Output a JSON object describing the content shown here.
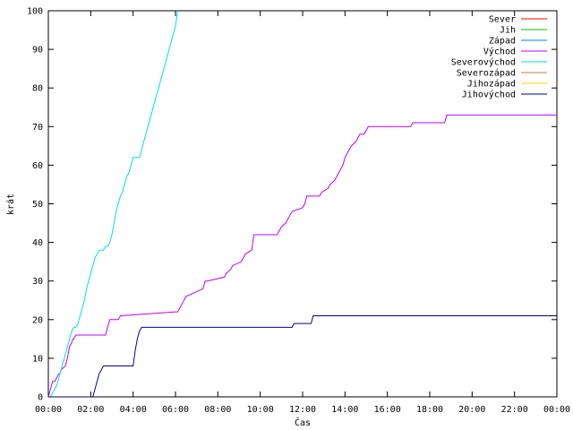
{
  "chart_data": {
    "type": "line",
    "xlabel": "Čas",
    "ylabel": "krát",
    "xlim": [
      0,
      24
    ],
    "ylim": [
      0,
      100
    ],
    "x_ticks": [
      {
        "value": 0,
        "label": "00:00"
      },
      {
        "value": 2,
        "label": "02:00"
      },
      {
        "value": 4,
        "label": "04:00"
      },
      {
        "value": 6,
        "label": "06:00"
      },
      {
        "value": 8,
        "label": "08:00"
      },
      {
        "value": 10,
        "label": "10:00"
      },
      {
        "value": 12,
        "label": "12:00"
      },
      {
        "value": 14,
        "label": "14:00"
      },
      {
        "value": 16,
        "label": "16:00"
      },
      {
        "value": 18,
        "label": "18:00"
      },
      {
        "value": 20,
        "label": "20:00"
      },
      {
        "value": 22,
        "label": "22:00"
      },
      {
        "value": 24,
        "label": "00:00"
      }
    ],
    "y_ticks": [
      {
        "value": 0,
        "label": "0"
      },
      {
        "value": 10,
        "label": "10"
      },
      {
        "value": 20,
        "label": "20"
      },
      {
        "value": 30,
        "label": "30"
      },
      {
        "value": 40,
        "label": "40"
      },
      {
        "value": 50,
        "label": "50"
      },
      {
        "value": 60,
        "label": "60"
      },
      {
        "value": 70,
        "label": "70"
      },
      {
        "value": 80,
        "label": "80"
      },
      {
        "value": 90,
        "label": "90"
      },
      {
        "value": 100,
        "label": "100"
      }
    ],
    "grid": false,
    "legend_position": "top-right",
    "series": [
      {
        "name": "Sever",
        "color": "#ff0000",
        "x": [],
        "y": []
      },
      {
        "name": "Jih",
        "color": "#00c000",
        "x": [],
        "y": []
      },
      {
        "name": "Západ",
        "color": "#0080ff",
        "x": [],
        "y": []
      },
      {
        "name": "Východ",
        "color": "#c000ff",
        "x": [
          0,
          0.1,
          0.15,
          0.2,
          0.3,
          0.4,
          0.5,
          0.55,
          0.6,
          0.8,
          0.85,
          0.9,
          1.0,
          1.1,
          1.15,
          1.2,
          1.3,
          1.4,
          1.5,
          2.7,
          2.8,
          2.9,
          3.3,
          3.4,
          6.0,
          6.1,
          6.2,
          6.3,
          6.4,
          6.5,
          7.3,
          7.4,
          7.5,
          8.3,
          8.4,
          8.6,
          8.7,
          9.1,
          9.2,
          9.3,
          9.6,
          9.7,
          10.8,
          10.9,
          11.0,
          11.2,
          11.3,
          11.4,
          11.5,
          12.0,
          12.1,
          12.2,
          12.8,
          12.9,
          13.2,
          13.3,
          13.5,
          13.6,
          13.7,
          13.8,
          13.9,
          14.0,
          14.1,
          14.2,
          14.3,
          14.5,
          14.6,
          14.7,
          14.9,
          15.0,
          15.1,
          17.1,
          17.2,
          18.7,
          18.8,
          24.0
        ],
        "y": [
          0,
          2,
          3,
          4,
          4,
          5,
          6,
          6,
          7,
          8,
          9,
          10,
          13,
          14,
          15,
          15,
          16,
          16,
          16,
          16,
          18,
          20,
          20,
          21,
          22,
          22,
          23,
          24,
          25,
          26,
          28,
          30,
          30,
          31,
          32,
          33,
          34,
          35,
          36,
          37,
          38,
          42,
          42,
          43,
          44,
          45,
          46,
          47,
          48,
          49,
          50,
          52,
          52,
          53,
          54,
          55,
          56,
          57,
          58,
          59,
          60,
          62,
          63,
          64,
          65,
          66,
          67,
          68,
          68,
          69,
          70,
          70,
          71,
          71,
          73,
          73
        ]
      },
      {
        "name": "Severovýchod",
        "color": "#00e0e0",
        "x": [
          0,
          0.1,
          0.2,
          0.3,
          0.4,
          0.5,
          0.6,
          0.7,
          0.8,
          0.9,
          1.0,
          1.1,
          1.2,
          1.3,
          1.4,
          1.5,
          1.6,
          1.7,
          1.8,
          1.9,
          2.0,
          2.1,
          2.2,
          2.3,
          2.4,
          2.5,
          2.6,
          2.7,
          2.8,
          2.9,
          3.0,
          3.1,
          3.2,
          3.3,
          3.4,
          3.5,
          3.6,
          3.7,
          3.8,
          3.9,
          4.0,
          4.1,
          4.2,
          4.3,
          4.4,
          4.5,
          4.6,
          4.7,
          4.8,
          4.9,
          5.0,
          5.1,
          5.2,
          5.3,
          5.4,
          5.5,
          5.6,
          5.7,
          5.8,
          5.9,
          6.0,
          6.1
        ],
        "y": [
          0,
          0,
          1,
          2,
          3,
          5,
          7,
          9,
          11,
          13,
          15,
          17,
          18,
          18,
          19,
          21,
          23,
          25,
          28,
          30,
          32,
          34,
          36,
          37,
          38,
          38,
          38,
          39,
          39,
          40,
          42,
          45,
          48,
          50,
          52,
          53,
          55,
          57,
          58,
          60,
          62,
          62,
          62,
          62,
          64,
          66,
          68,
          70,
          72,
          74,
          76,
          78,
          80,
          82,
          84,
          86,
          88,
          90,
          92,
          94,
          96,
          100
        ]
      },
      {
        "name": "Severozápad",
        "color": "#c08040",
        "x": [],
        "y": []
      },
      {
        "name": "Jihozápad",
        "color": "#ffd700",
        "x": [],
        "y": []
      },
      {
        "name": "Jihovýchod",
        "color": "#0000a0",
        "x": [
          0,
          2.1,
          2.2,
          2.3,
          2.4,
          2.5,
          2.6,
          2.7,
          4.0,
          4.1,
          4.2,
          4.3,
          4.4,
          11.5,
          11.6,
          12.4,
          12.5,
          24.0
        ],
        "y": [
          0,
          0,
          2,
          4,
          6,
          7,
          8,
          8,
          8,
          12,
          15,
          17,
          18,
          18,
          19,
          19,
          21,
          21
        ]
      }
    ]
  }
}
